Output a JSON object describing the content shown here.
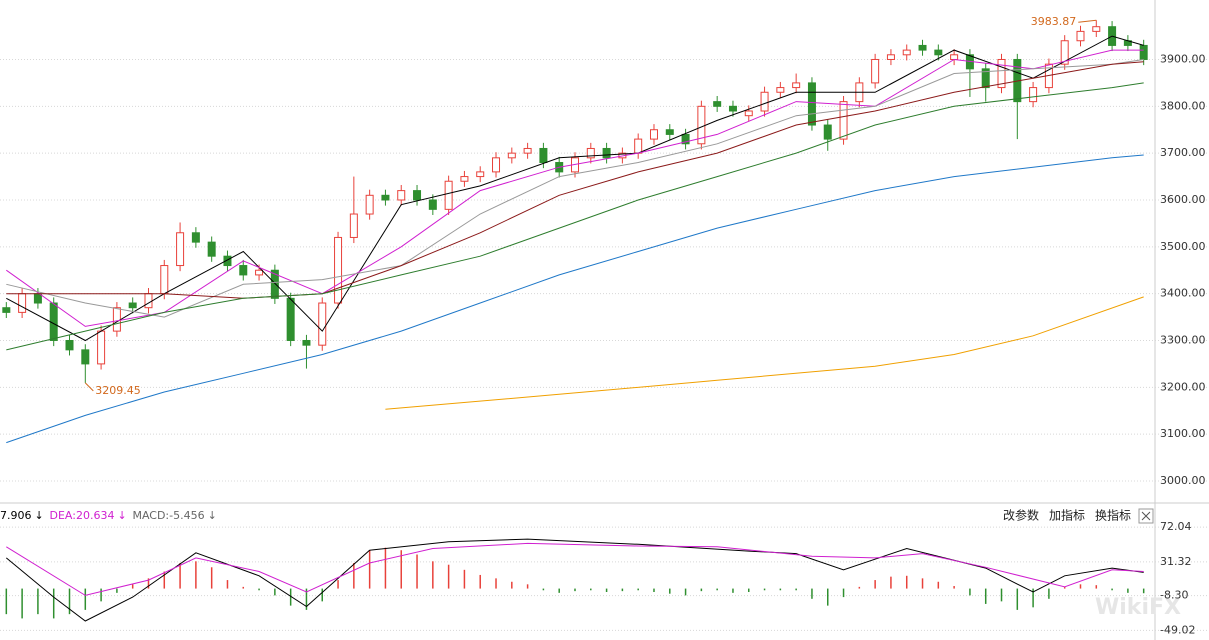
{
  "chart_data": [
    {
      "type": "candlestick",
      "xlim": [
        -0.4,
        72.4
      ],
      "ylim": [
        2953,
        4027
      ],
      "yticks": [
        {
          "value": 3000,
          "label": "3000.00"
        },
        {
          "value": 3100,
          "label": "3100.00"
        },
        {
          "value": 3200,
          "label": "3200.00"
        },
        {
          "value": 3300,
          "label": "3300.00"
        },
        {
          "value": 3400,
          "label": "3400.00"
        },
        {
          "value": 3500,
          "label": "3500.00"
        },
        {
          "value": 3600,
          "label": "3600.00"
        },
        {
          "value": 3700,
          "label": "3700.00"
        },
        {
          "value": 3800,
          "label": "3800.00"
        },
        {
          "value": 3900,
          "label": "3900.00"
        }
      ],
      "grid": true,
      "up_color": "#e8413a",
      "down_color": "#2f8f2f",
      "open": [
        3370,
        3360,
        3400,
        3380,
        3300,
        3280,
        3250,
        3320,
        3380,
        3370,
        3400,
        3460,
        3530,
        3510,
        3480,
        3460,
        3440,
        3450,
        3390,
        3300,
        3290,
        3380,
        3520,
        3570,
        3610,
        3600,
        3620,
        3600,
        3580,
        3640,
        3650,
        3660,
        3690,
        3700,
        3710,
        3680,
        3660,
        3690,
        3710,
        3690,
        3700,
        3730,
        3750,
        3740,
        3720,
        3810,
        3800,
        3780,
        3790,
        3830,
        3840,
        3850,
        3760,
        3730,
        3810,
        3850,
        3900,
        3910,
        3930,
        3920,
        3900,
        3910,
        3880,
        3840,
        3900,
        3810,
        3840,
        3890,
        3940,
        3960,
        3970,
        3940,
        3930
      ],
      "high": [
        3382,
        3412,
        3412,
        3392,
        3312,
        3292,
        3332,
        3382,
        3392,
        3412,
        3472,
        3552,
        3542,
        3522,
        3492,
        3472,
        3462,
        3462,
        3402,
        3312,
        3392,
        3532,
        3650,
        3622,
        3622,
        3632,
        3632,
        3612,
        3652,
        3662,
        3672,
        3702,
        3712,
        3722,
        3722,
        3692,
        3702,
        3722,
        3722,
        3712,
        3742,
        3762,
        3762,
        3752,
        3812,
        3822,
        3812,
        3802,
        3842,
        3852,
        3870,
        3862,
        3772,
        3822,
        3862,
        3912,
        3922,
        3932,
        3942,
        3932,
        3922,
        3922,
        3892,
        3912,
        3912,
        3852,
        3902,
        3952,
        3972,
        3983.87,
        3982,
        3952,
        3942
      ],
      "low": [
        3348,
        3348,
        3368,
        3288,
        3268,
        3209.45,
        3238,
        3308,
        3358,
        3358,
        3388,
        3448,
        3498,
        3468,
        3448,
        3428,
        3428,
        3378,
        3288,
        3240,
        3278,
        3368,
        3508,
        3558,
        3588,
        3588,
        3588,
        3568,
        3568,
        3628,
        3638,
        3648,
        3678,
        3688,
        3668,
        3648,
        3648,
        3678,
        3678,
        3678,
        3688,
        3718,
        3728,
        3708,
        3708,
        3788,
        3778,
        3768,
        3778,
        3818,
        3828,
        3748,
        3705,
        3718,
        3798,
        3838,
        3888,
        3898,
        3908,
        3898,
        3888,
        3820,
        3810,
        3828,
        3730,
        3798,
        3828,
        3878,
        3928,
        3948,
        3918,
        3918,
        3888
      ],
      "close": [
        3360,
        3400,
        3380,
        3300,
        3280,
        3250,
        3320,
        3370,
        3370,
        3400,
        3460,
        3530,
        3510,
        3480,
        3460,
        3440,
        3450,
        3390,
        3300,
        3290,
        3380,
        3520,
        3570,
        3610,
        3600,
        3620,
        3600,
        3580,
        3640,
        3650,
        3660,
        3690,
        3700,
        3710,
        3680,
        3660,
        3690,
        3710,
        3690,
        3700,
        3730,
        3750,
        3740,
        3720,
        3800,
        3800,
        3790,
        3790,
        3830,
        3840,
        3850,
        3760,
        3730,
        3810,
        3850,
        3900,
        3910,
        3920,
        3920,
        3910,
        3910,
        3880,
        3840,
        3900,
        3810,
        3840,
        3890,
        3940,
        3960,
        3970,
        3930,
        3930,
        3900
      ],
      "series": [
        {
          "color": "#000000",
          "x": [
            0,
            5,
            10,
            15,
            20,
            25,
            30,
            35,
            40,
            45,
            50,
            55,
            60,
            65,
            70,
            72
          ],
          "values": [
            3390,
            3300,
            3400,
            3490,
            3320,
            3590,
            3630,
            3690,
            3700,
            3770,
            3830,
            3830,
            3920,
            3860,
            3950,
            3930
          ]
        },
        {
          "color": "#d020d0",
          "x": [
            0,
            5,
            10,
            15,
            20,
            25,
            30,
            35,
            40,
            45,
            50,
            55,
            60,
            65,
            70,
            72
          ],
          "values": [
            3450,
            3330,
            3360,
            3470,
            3400,
            3500,
            3620,
            3670,
            3700,
            3740,
            3810,
            3800,
            3900,
            3880,
            3920,
            3920
          ]
        },
        {
          "color": "#999999",
          "x": [
            0,
            5,
            10,
            15,
            20,
            25,
            30,
            35,
            40,
            45,
            50,
            55,
            60,
            65,
            70,
            72
          ],
          "values": [
            3420,
            3380,
            3350,
            3420,
            3430,
            3460,
            3570,
            3650,
            3680,
            3720,
            3780,
            3800,
            3870,
            3880,
            3890,
            3900
          ]
        },
        {
          "color": "#8b1a1a",
          "x": [
            0,
            5,
            10,
            15,
            20,
            25,
            30,
            35,
            40,
            45,
            50,
            55,
            60,
            65,
            70,
            72
          ],
          "values": [
            3400,
            3400,
            3400,
            3390,
            3400,
            3460,
            3530,
            3610,
            3660,
            3700,
            3760,
            3790,
            3830,
            3860,
            3890,
            3895
          ]
        },
        {
          "color": "#2e7d2e",
          "x": [
            0,
            5,
            10,
            15,
            20,
            25,
            30,
            35,
            40,
            45,
            50,
            55,
            60,
            65,
            70,
            72
          ],
          "values": [
            3280,
            3320,
            3360,
            3390,
            3400,
            3440,
            3480,
            3540,
            3600,
            3650,
            3700,
            3760,
            3800,
            3820,
            3840,
            3850
          ]
        },
        {
          "color": "#1f78c8",
          "x": [
            0,
            5,
            10,
            15,
            20,
            25,
            30,
            35,
            40,
            45,
            50,
            55,
            60,
            65,
            70,
            72
          ],
          "values": [
            3082,
            3140,
            3190,
            3230,
            3270,
            3320,
            3380,
            3440,
            3490,
            3540,
            3580,
            3620,
            3650,
            3670,
            3690,
            3696
          ]
        },
        {
          "color": "#f0a000",
          "x": [
            24,
            35,
            45,
            55,
            60,
            65,
            72
          ],
          "values": [
            3153,
            3185,
            3215,
            3245,
            3270,
            3310,
            3393
          ]
        }
      ],
      "annotations": [
        {
          "label": "3983.87",
          "x": 69,
          "value": 3983.87,
          "color": "#d2691e"
        },
        {
          "label": "3209.45",
          "x": 5,
          "value": 3209.45,
          "color": "#d2691e"
        }
      ]
    },
    {
      "type": "macd",
      "xlim": [
        -0.4,
        72.4
      ],
      "ylim": [
        -60.33,
        98.06
      ],
      "yticks": [
        72.04,
        31.32,
        {
          "value": -8.3,
          "label": "-8.30"
        },
        -49.02
      ],
      "grid": true,
      "legend": [
        {
          "text": "7.906",
          "color": "#000000"
        },
        {
          "text": "DEA:20.634",
          "color": "#d020d0"
        },
        {
          "text": "MACD:-5.456",
          "color": "#666666"
        }
      ],
      "up_color": "#e8413a",
      "down_color": "#2f8f2f",
      "values": [
        -30,
        -35,
        -30,
        -35,
        -30,
        -25,
        -15,
        -5,
        5,
        12,
        20,
        30,
        32,
        25,
        10,
        2,
        -2,
        -8,
        -20,
        -25,
        -15,
        10,
        30,
        45,
        48,
        45,
        40,
        32,
        28,
        22,
        16,
        12,
        8,
        5,
        -2,
        -5,
        -3,
        -2,
        -4,
        -3,
        -2,
        -4,
        -6,
        -8,
        -3,
        -2,
        -5,
        -4,
        -2,
        -2,
        -2,
        -12,
        -20,
        -10,
        2,
        10,
        14,
        15,
        12,
        8,
        3,
        -8,
        -18,
        -15,
        -25,
        -22,
        -12,
        2,
        5,
        4,
        -2,
        -5,
        -5.456
      ],
      "series": [
        {
          "color": "#000000",
          "x": [
            0,
            3,
            5,
            8,
            12,
            16,
            19,
            23,
            28,
            33,
            40,
            47,
            50,
            53,
            57,
            62,
            65,
            67,
            70,
            72
          ],
          "values": [
            36,
            -10,
            -38,
            -10,
            42,
            15,
            -21,
            45,
            55,
            58,
            52,
            44,
            41,
            22,
            47,
            24,
            -4,
            15,
            24,
            19
          ]
        },
        {
          "color": "#d020d0",
          "x": [
            0,
            5,
            9,
            12,
            16,
            19,
            23,
            27,
            33,
            40,
            45,
            51,
            55,
            58,
            62,
            67,
            70,
            72
          ],
          "values": [
            49,
            -8,
            10,
            36,
            20,
            -4,
            30,
            47,
            53,
            50,
            49,
            38,
            36,
            41,
            25,
            2,
            22,
            20
          ]
        }
      ]
    }
  ],
  "toolbar": [
    "改参数",
    "加指标",
    "换指标"
  ],
  "watermark": "WikiFX"
}
